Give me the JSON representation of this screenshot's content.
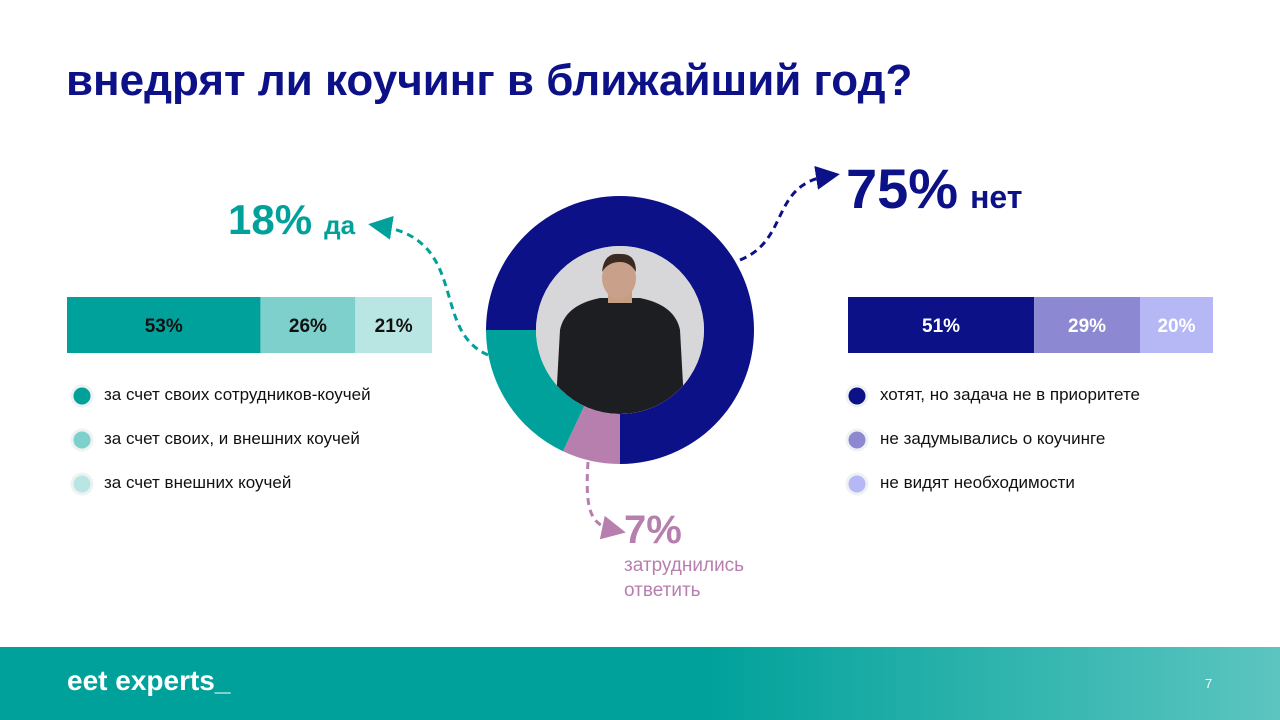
{
  "title": "внедрят ли коучинг в ближайший год?",
  "chart_data": [
    {
      "type": "pie",
      "donut": true,
      "categories": [
        "затруднились ответить",
        "да",
        "нет"
      ],
      "values": [
        7,
        18,
        75
      ],
      "value_labels": [
        "7%",
        "18%",
        "75%"
      ],
      "colors": [
        "#b77fae",
        "#00a19a",
        "#0c1187"
      ]
    },
    {
      "type": "bar",
      "orientation": "horizontal",
      "stacked": true,
      "series": [
        {
          "name": "за счет своих сотрудников-коучей",
          "color": "#00a19a",
          "values": [
            53
          ],
          "value_labels": [
            "53%"
          ]
        },
        {
          "name": "за счет своих, и внешних коучей",
          "color": "#7dd0cc",
          "values": [
            26
          ],
          "value_labels": [
            "26%"
          ]
        },
        {
          "name": "за счет внешних коучей",
          "color": "#b9e6e3",
          "values": [
            21
          ],
          "value_labels": [
            "21%"
          ]
        }
      ]
    },
    {
      "type": "bar",
      "orientation": "horizontal",
      "stacked": true,
      "series": [
        {
          "name": "хотят, но задача не в приоритете",
          "color": "#0c1187",
          "values": [
            51
          ],
          "value_labels": [
            "51%"
          ]
        },
        {
          "name": "не задумывались о коучинге",
          "color": "#8c89d2",
          "values": [
            29
          ],
          "value_labels": [
            "29%"
          ]
        },
        {
          "name": "не видят необходимости",
          "color": "#b6b8f6",
          "values": [
            20
          ],
          "value_labels": [
            "20%"
          ]
        }
      ]
    }
  ],
  "footer": {
    "logo": "eet experts_",
    "page": 7
  }
}
